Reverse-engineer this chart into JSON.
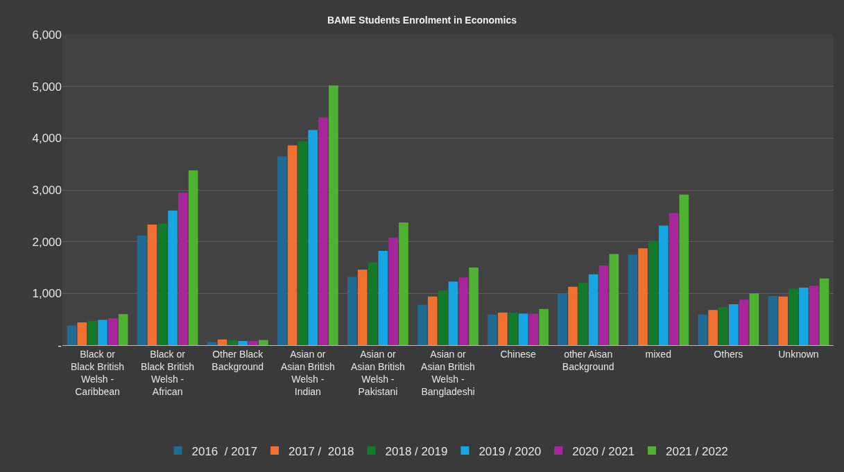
{
  "chart_data": {
    "type": "bar",
    "title": "BAME Students Enrolment in Economics",
    "categories": [
      "Black or Black British Welsh - Caribbean",
      "Black or Black British Welsh - African",
      "Other Black Background",
      "Asian or Asian British Welsh - Indian",
      "Asian or Asian British Welsh - Pakistani",
      "Asian or Asian British Welsh - Bangladeshi",
      "Chinese",
      "other Aisan Background",
      "mixed",
      "Others",
      "Unknown"
    ],
    "series": [
      {
        "name": "2016  / 2017",
        "color": "#1f6b94",
        "values": [
          380,
          2120,
          60,
          3650,
          1320,
          780,
          590,
          1000,
          1750,
          590,
          950
        ]
      },
      {
        "name": "2017 /  2018",
        "color": "#f07030",
        "values": [
          440,
          2330,
          110,
          3860,
          1460,
          940,
          630,
          1130,
          1870,
          680,
          940
        ]
      },
      {
        "name": "2018 / 2019",
        "color": "#137a2a",
        "values": [
          470,
          2350,
          100,
          3940,
          1600,
          1060,
          630,
          1210,
          2020,
          730,
          1090
        ]
      },
      {
        "name": "2019 / 2020",
        "color": "#16a6e4",
        "values": [
          490,
          2600,
          80,
          4160,
          1820,
          1230,
          610,
          1370,
          2310,
          790,
          1110
        ]
      },
      {
        "name": "2020 / 2021",
        "color": "#a8259c",
        "values": [
          520,
          2950,
          80,
          4400,
          2080,
          1310,
          610,
          1540,
          2550,
          880,
          1150
        ]
      },
      {
        "name": "2021 / 2022",
        "color": "#4fb232",
        "values": [
          600,
          3380,
          100,
          5020,
          2370,
          1500,
          700,
          1760,
          2910,
          1000,
          1290
        ]
      }
    ],
    "ylim": [
      0,
      6000
    ],
    "yticks": [
      {
        "value": 0,
        "label": "-"
      },
      {
        "value": 1000,
        "label": "1,000"
      },
      {
        "value": 2000,
        "label": "2,000"
      },
      {
        "value": 3000,
        "label": "3,000"
      },
      {
        "value": 4000,
        "label": "4,000"
      },
      {
        "value": 5000,
        "label": "5,000"
      },
      {
        "value": 6000,
        "label": "6,000"
      }
    ],
    "grid": "y",
    "legend": "bottom"
  }
}
